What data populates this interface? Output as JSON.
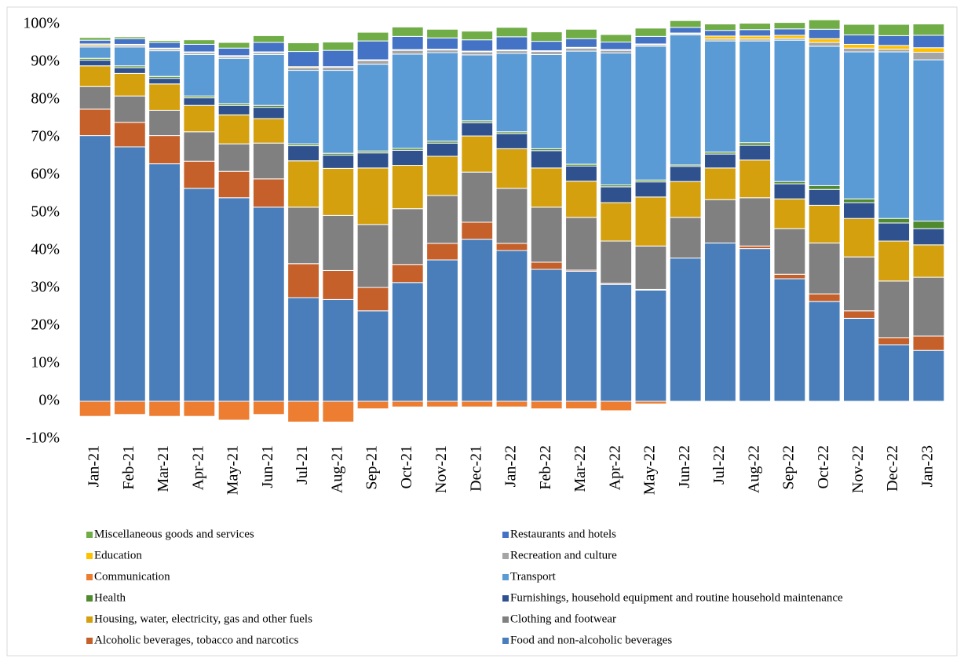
{
  "chart_data": {
    "type": "stacked-bar",
    "categories": [
      "Jan-21",
      "Feb-21",
      "Mar-21",
      "Apr-21",
      "May-21",
      "Jun-21",
      "Jul-21",
      "Aug-21",
      "Sep-21",
      "Oct-21",
      "Nov-21",
      "Dec-21",
      "Jan-22",
      "Feb-22",
      "Mar-22",
      "Apr-22",
      "May-22",
      "Jun-22",
      "Jul-22",
      "Aug-22",
      "Sep-22",
      "Oct-22",
      "Nov-22",
      "Dec-22",
      "Jan-23"
    ],
    "ylim": [
      -10,
      100
    ],
    "yticks": [
      {
        "value": -10,
        "label": "-10%"
      },
      {
        "value": 0,
        "label": "0%"
      },
      {
        "value": 10,
        "label": "10%"
      },
      {
        "value": 20,
        "label": "20%"
      },
      {
        "value": 30,
        "label": "30%"
      },
      {
        "value": 40,
        "label": "40%"
      },
      {
        "value": 50,
        "label": "50%"
      },
      {
        "value": 60,
        "label": "60%"
      },
      {
        "value": 70,
        "label": "70%"
      },
      {
        "value": 80,
        "label": "80%"
      },
      {
        "value": 90,
        "label": "90%"
      },
      {
        "value": 100,
        "label": "100%"
      }
    ],
    "grid": false,
    "series": [
      {
        "name": "Food and non-alcoholic beverages",
        "color": "#4a7ebb",
        "values": [
          70.5,
          67.5,
          63,
          56.5,
          54,
          51.5,
          27.5,
          27,
          24,
          31.5,
          37.5,
          43,
          40,
          35,
          34.5,
          31,
          29.5,
          38,
          42,
          40.5,
          32.5,
          26.5,
          22,
          15,
          13.5
        ]
      },
      {
        "name": "Alcoholic beverages, tobacco and narcotics",
        "color": "#c5602a",
        "values": [
          7,
          6.5,
          7.5,
          7.2,
          7,
          7.5,
          9,
          7.7,
          6.2,
          4.8,
          4.4,
          4.5,
          1.9,
          1.9,
          0.3,
          0.3,
          0.2,
          0,
          0,
          0.7,
          1.2,
          2,
          2,
          1.9,
          3.8
        ]
      },
      {
        "name": "Clothing and footwear",
        "color": "#808080",
        "values": [
          6,
          7,
          6.7,
          7.8,
          7.3,
          9.5,
          15,
          14.6,
          16.7,
          14.8,
          12.7,
          13.3,
          14.6,
          14.6,
          14,
          11.2,
          11.5,
          10.8,
          11.5,
          12.8,
          12.1,
          13.5,
          14.3,
          15,
          15.6
        ]
      },
      {
        "name": "Housing, water, electricity, gas and other fuels",
        "color": "#d4a00e",
        "values": [
          5.5,
          6,
          7,
          7,
          7.7,
          6.5,
          12.3,
          12.5,
          15,
          11.5,
          10.4,
          9.6,
          10.5,
          10.4,
          9.6,
          10.2,
          13,
          9.5,
          8.4,
          10,
          7.9,
          10,
          10.2,
          10.6,
          8.6
        ]
      },
      {
        "name": "Furnishings, household equipment and routine household maintenance",
        "color": "#2f528f",
        "values": [
          1.5,
          1.5,
          1.5,
          2,
          2.5,
          3,
          4,
          3.5,
          4,
          4,
          3.5,
          3.5,
          4,
          4.6,
          4,
          4.2,
          4,
          4,
          3.7,
          3.9,
          4,
          4.2,
          4.2,
          4.8,
          4.3
        ]
      },
      {
        "name": "Health",
        "color": "#4f8a2f",
        "values": [
          0.5,
          0.5,
          0.5,
          0.5,
          0.5,
          0.5,
          0.5,
          0.5,
          0.5,
          0.5,
          0.5,
          0.5,
          0.5,
          0.5,
          0.5,
          0.5,
          0.5,
          0.4,
          0.5,
          0.7,
          0.6,
          1,
          1,
          1.2,
          2
        ]
      },
      {
        "name": "Transport",
        "color": "#5b9bd5",
        "values": [
          3,
          5,
          6.8,
          11,
          12,
          13.5,
          19.5,
          22,
          23,
          25,
          23.5,
          17.5,
          20.8,
          25,
          30,
          35,
          35.5,
          34.5,
          29.5,
          27,
          37.5,
          37,
          39,
          44.2,
          42.8
        ]
      },
      {
        "name": "Communication",
        "color": "#ed7d31",
        "values": [
          -4,
          -3.5,
          -4,
          -4,
          -5,
          -3.5,
          -5.5,
          -5.5,
          -2,
          -1.5,
          -1.5,
          -1.5,
          -1.5,
          -2,
          -2,
          -2.5,
          -0.7,
          -0.2,
          0,
          0,
          0,
          0,
          0,
          0,
          0
        ]
      },
      {
        "name": "Recreation and culture",
        "color": "#a5a5a5",
        "values": [
          0.5,
          0.5,
          0.5,
          0.5,
          0.5,
          0.5,
          0.7,
          0.8,
          1,
          1,
          0.7,
          0.8,
          0.7,
          0.8,
          0.8,
          0.7,
          0.4,
          0.3,
          0.5,
          0.5,
          0.5,
          1,
          1,
          0.7,
          2
        ]
      },
      {
        "name": "Education",
        "color": "#ffc000",
        "values": [
          0.3,
          0.2,
          0.2,
          0.2,
          0.2,
          0.2,
          0.3,
          0.2,
          0.2,
          0.2,
          0.2,
          0.2,
          0.2,
          0.2,
          0.2,
          0.2,
          0.2,
          0.2,
          0.8,
          0.8,
          0.8,
          1,
          1,
          1,
          1.2
        ]
      },
      {
        "name": "Restaurants and hotels",
        "color": "#4472c4",
        "values": [
          1,
          1.5,
          1.5,
          2,
          2,
          2.5,
          4,
          4.3,
          5,
          3.5,
          3,
          3,
          3.5,
          2.5,
          2.3,
          2,
          2,
          1.5,
          1.5,
          1.7,
          1.7,
          2.5,
          2.5,
          2.6,
          3.3
        ]
      },
      {
        "name": "Miscellaneous goods and services",
        "color": "#70ad47",
        "values": [
          0.7,
          0.5,
          0.5,
          1.2,
          1.5,
          1.8,
          2.3,
          2.2,
          2.3,
          2.5,
          2.3,
          2.3,
          2.5,
          2.5,
          2.5,
          2,
          2.2,
          1.8,
          1.7,
          1.7,
          1.7,
          2.5,
          2.8,
          3,
          3
        ]
      }
    ]
  }
}
